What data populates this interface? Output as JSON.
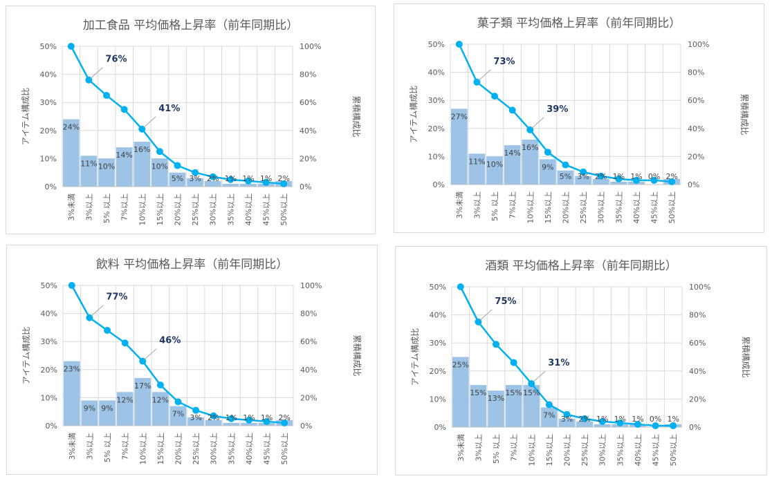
{
  "common": {
    "categories": [
      "3%未満",
      "3%以上",
      "5% 以上",
      "7%以上",
      "10%以上",
      "15%以上",
      "20%以上",
      "25%以上",
      "30%以上",
      "35%以上",
      "40%以上",
      "45%以上",
      "50%以上"
    ],
    "left_ticks": [
      "0%",
      "10%",
      "20%",
      "30%",
      "40%",
      "50%"
    ],
    "right_ticks": [
      "0%",
      "20%",
      "40%",
      "60%",
      "80%",
      "100%"
    ],
    "ylabel": "アイテム構成比",
    "y2label": "累積構成比",
    "bar_color": "#9dc3e6",
    "line_color": "#00b0f0",
    "annotation_color": "#1f3864"
  },
  "chart_data": [
    {
      "type": "bar+line",
      "title": "加工食品 平均価格上昇率（前年同期比）",
      "ylim": [
        0,
        50
      ],
      "y2lim": [
        0,
        100
      ],
      "bars": [
        24,
        11,
        10,
        14,
        16,
        10,
        5,
        3,
        2,
        1,
        1,
        1,
        2
      ],
      "bar_labels": [
        "24%",
        "11%",
        "10%",
        "14%",
        "16%",
        "10%",
        "5%",
        "3%",
        "2%",
        "1%",
        "1%",
        "1%",
        "2%"
      ],
      "line": [
        100,
        76,
        65,
        55,
        41,
        25,
        15,
        10,
        7,
        5,
        4,
        3,
        2
      ],
      "annotations": [
        {
          "index": 1,
          "text": "76%"
        },
        {
          "index": 4,
          "text": "41%"
        }
      ]
    },
    {
      "type": "bar+line",
      "title": "菓子類  平均価格上昇率（前年同期比）",
      "ylim": [
        0,
        50
      ],
      "y2lim": [
        0,
        100
      ],
      "bars": [
        27,
        11,
        10,
        14,
        16,
        9,
        5,
        3,
        2,
        1,
        1,
        0,
        2
      ],
      "bar_labels": [
        "27%",
        "11%",
        "10%",
        "14%",
        "16%",
        "9%",
        "5%",
        "3%",
        "2%",
        "1%",
        "1%",
        "0%",
        "2%"
      ],
      "line": [
        100,
        73,
        63,
        53,
        39,
        23,
        14,
        9,
        6,
        4,
        3,
        3,
        2
      ],
      "annotations": [
        {
          "index": 1,
          "text": "73%"
        },
        {
          "index": 4,
          "text": "39%"
        }
      ]
    },
    {
      "type": "bar+line",
      "title": "飲料  平均価格上昇率（前年同期比）",
      "ylim": [
        0,
        50
      ],
      "y2lim": [
        0,
        100
      ],
      "bars": [
        23,
        9,
        9,
        12,
        17,
        12,
        7,
        3,
        2,
        1,
        1,
        1,
        2
      ],
      "bar_labels": [
        "23%",
        "9%",
        "9%",
        "12%",
        "17%",
        "12%",
        "7%",
        "3%",
        "2%",
        "1%",
        "1%",
        "1%",
        "2%"
      ],
      "line": [
        100,
        77,
        68,
        59,
        46,
        29,
        17,
        11,
        7,
        5,
        4,
        3,
        2
      ],
      "annotations": [
        {
          "index": 1,
          "text": "77%"
        },
        {
          "index": 4,
          "text": "46%"
        }
      ]
    },
    {
      "type": "bar+line",
      "title": "酒類  平均価格上昇率（前年同期比）",
      "ylim": [
        0,
        50
      ],
      "y2lim": [
        0,
        100
      ],
      "bars": [
        25,
        15,
        13,
        15,
        15,
        7,
        3,
        2,
        1,
        1,
        1,
        0,
        1
      ],
      "bar_labels": [
        "25%",
        "15%",
        "13%",
        "15%",
        "15%",
        "7%",
        "3%",
        "2%",
        "1%",
        "1%",
        "1%",
        "0%",
        "1%"
      ],
      "line": [
        100,
        75,
        59,
        46,
        31,
        16,
        9,
        6,
        4,
        3,
        2,
        1,
        1
      ],
      "annotations": [
        {
          "index": 1,
          "text": "75%"
        },
        {
          "index": 4,
          "text": "31%"
        }
      ]
    }
  ]
}
